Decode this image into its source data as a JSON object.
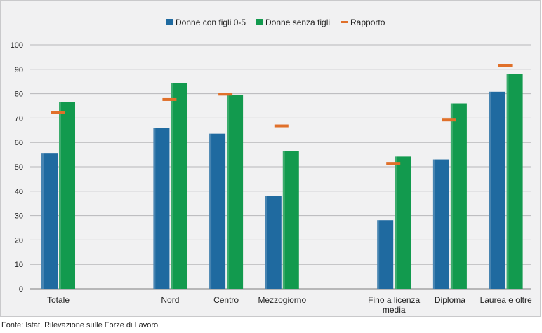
{
  "chart_data": {
    "type": "bar",
    "categories": [
      {
        "label": [
          "Totale"
        ],
        "slot": 0
      },
      {
        "label": [
          "Nord"
        ],
        "slot": 2
      },
      {
        "label": [
          "Centro"
        ],
        "slot": 3
      },
      {
        "label": [
          "Mezzogiorno"
        ],
        "slot": 4
      },
      {
        "label": [
          "Fino a licenza",
          "media"
        ],
        "slot": 6
      },
      {
        "label": [
          "Diploma"
        ],
        "slot": 7
      },
      {
        "label": [
          "Laurea e oltre"
        ],
        "slot": 8
      }
    ],
    "series": [
      {
        "name": "Donne con figli 0-5",
        "kind": "bar",
        "color": "#1f6aa0",
        "values": [
          55.7,
          66.0,
          63.6,
          38.0,
          28.1,
          53.0,
          80.8
        ]
      },
      {
        "name": "Donne senza figli",
        "kind": "bar",
        "color": "#129a4e",
        "values": [
          76.6,
          84.4,
          79.5,
          56.5,
          54.2,
          76.0,
          88.0
        ]
      },
      {
        "name": "Rapporto",
        "kind": "marker",
        "color": "#e0702a",
        "values": [
          72.3,
          77.6,
          79.8,
          66.8,
          51.4,
          69.2,
          91.5
        ]
      }
    ],
    "ylim": [
      0,
      100
    ],
    "yticks": [
      0,
      10,
      20,
      30,
      40,
      50,
      60,
      70,
      80,
      90,
      100
    ],
    "grid": true,
    "legend_position": "top-center"
  },
  "source": "Fonte: Istat, Rilevazione sulle Forze di Lavoro"
}
